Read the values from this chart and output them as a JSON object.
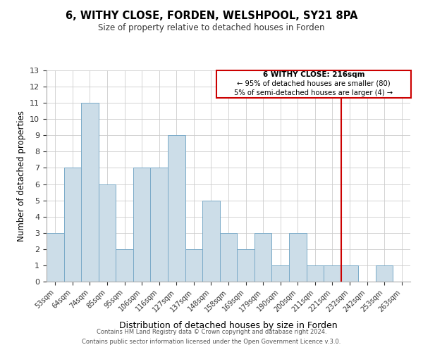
{
  "title": "6, WITHY CLOSE, FORDEN, WELSHPOOL, SY21 8PA",
  "subtitle": "Size of property relative to detached houses in Forden",
  "xlabel": "Distribution of detached houses by size in Forden",
  "ylabel": "Number of detached properties",
  "bar_labels": [
    "53sqm",
    "64sqm",
    "74sqm",
    "85sqm",
    "95sqm",
    "106sqm",
    "116sqm",
    "127sqm",
    "137sqm",
    "148sqm",
    "158sqm",
    "169sqm",
    "179sqm",
    "190sqm",
    "200sqm",
    "211sqm",
    "221sqm",
    "232sqm",
    "242sqm",
    "253sqm",
    "263sqm"
  ],
  "bar_values": [
    3,
    7,
    11,
    6,
    2,
    7,
    7,
    9,
    2,
    5,
    3,
    2,
    3,
    1,
    3,
    1,
    1,
    1,
    0,
    1,
    0
  ],
  "bar_color": "#ccdde8",
  "bar_edge_color": "#7aaac8",
  "property_line_label": "6 WITHY CLOSE: 216sqm",
  "annotation_line1": "← 95% of detached houses are smaller (80)",
  "annotation_line2": "5% of semi-detached houses are larger (4) →",
  "annotation_box_color": "#cc0000",
  "annotation_bg": "#ffffff",
  "ylim": [
    0,
    13
  ],
  "yticks": [
    0,
    1,
    2,
    3,
    4,
    5,
    6,
    7,
    8,
    9,
    10,
    11,
    12,
    13
  ],
  "footer_line1": "Contains HM Land Registry data © Crown copyright and database right 2024.",
  "footer_line2": "Contains public sector information licensed under the Open Government Licence v.3.0.",
  "background_color": "#ffffff",
  "grid_color": "#cccccc"
}
